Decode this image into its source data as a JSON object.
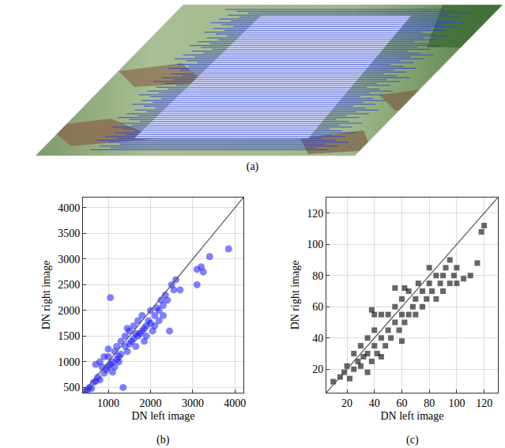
{
  "image_panel": {
    "label": "(a)"
  },
  "chart_data": [
    {
      "type": "scatter",
      "label": "(b)",
      "x_label": "DN left image",
      "y_label": "DN right image",
      "xlim": [
        400,
        4200
      ],
      "ylim": [
        400,
        4200
      ],
      "xticks": [
        1000,
        2000,
        3000,
        4000
      ],
      "yticks": [
        500,
        1000,
        1500,
        2000,
        2500,
        3000,
        3500,
        4000
      ],
      "grid": true,
      "series": [
        {
          "type": "scatter",
          "color": "#1a1aff",
          "marker": "circle",
          "x": [
            450,
            500,
            550,
            600,
            650,
            700,
            750,
            800,
            850,
            900,
            950,
            1000,
            1000,
            1050,
            1100,
            1100,
            1150,
            1200,
            1200,
            1250,
            1300,
            1300,
            1350,
            1400,
            1400,
            1450,
            1500,
            1500,
            1550,
            1600,
            1600,
            1650,
            1700,
            1700,
            1750,
            1800,
            1800,
            1850,
            1900,
            1900,
            1950,
            2000,
            2000,
            2050,
            2100,
            2100,
            2150,
            2200,
            2200,
            2250,
            2300,
            2350,
            2400,
            2450,
            2500,
            2550,
            2600,
            2700,
            3100,
            3200,
            3250,
            3400,
            3100,
            3850,
            800,
            700,
            900,
            1000,
            1050,
            1250,
            1650,
            1850,
            2300,
            1150,
            1450
          ],
          "values": [
            420,
            450,
            500,
            480,
            600,
            620,
            700,
            650,
            900,
            780,
            850,
            900,
            1100,
            950,
            1000,
            800,
            1200,
            1050,
            1300,
            1100,
            1150,
            1400,
            500,
            1300,
            1500,
            1200,
            1350,
            1600,
            1400,
            1450,
            1700,
            1300,
            1500,
            1800,
            1550,
            1600,
            1900,
            1650,
            1700,
            1500,
            1800,
            1750,
            2000,
            1600,
            1900,
            1700,
            2050,
            2000,
            1800,
            2200,
            2100,
            2300,
            2200,
            1600,
            2500,
            2400,
            2600,
            2400,
            2800,
            2850,
            2750,
            3050,
            2500,
            3200,
            1000,
            950,
            1100,
            1250,
            2250,
            1000,
            1550,
            1400,
            1900,
            900,
            1650
          ]
        },
        {
          "type": "line",
          "color": "#555555",
          "line_style": "solid",
          "x": [
            400,
            4200
          ],
          "values": [
            400,
            4200
          ]
        }
      ]
    },
    {
      "type": "scatter",
      "label": "(c)",
      "x_label": "DN left image",
      "y_label": "DN right image",
      "xlim": [
        5,
        130
      ],
      "ylim": [
        5,
        130
      ],
      "xticks": [
        20,
        40,
        60,
        80,
        100,
        120
      ],
      "yticks": [
        20,
        40,
        60,
        80,
        100,
        120
      ],
      "grid": true,
      "series": [
        {
          "type": "scatter",
          "color": "#000000",
          "marker": "square",
          "x": [
            10,
            15,
            18,
            20,
            22,
            25,
            25,
            28,
            30,
            30,
            32,
            35,
            35,
            38,
            40,
            40,
            42,
            45,
            45,
            48,
            50,
            50,
            52,
            55,
            55,
            58,
            60,
            60,
            62,
            65,
            65,
            68,
            70,
            70,
            72,
            75,
            75,
            78,
            80,
            80,
            82,
            85,
            85,
            88,
            90,
            90,
            92,
            95,
            95,
            98,
            100,
            100,
            105,
            110,
            115,
            118,
            120,
            40,
            38,
            55,
            62,
            35,
            45,
            60
          ],
          "values": [
            12,
            15,
            18,
            22,
            14,
            20,
            30,
            25,
            22,
            35,
            28,
            30,
            40,
            25,
            35,
            45,
            30,
            40,
            55,
            35,
            45,
            55,
            40,
            50,
            60,
            45,
            55,
            65,
            50,
            55,
            70,
            60,
            65,
            55,
            75,
            60,
            70,
            65,
            75,
            85,
            70,
            80,
            65,
            75,
            80,
            70,
            85,
            75,
            90,
            80,
            85,
            75,
            78,
            80,
            88,
            108,
            112,
            55,
            58,
            72,
            72,
            18,
            28,
            38
          ]
        },
        {
          "type": "line",
          "color": "#555555",
          "line_style": "solid",
          "x": [
            5,
            130
          ],
          "values": [
            5,
            130
          ]
        }
      ]
    }
  ]
}
